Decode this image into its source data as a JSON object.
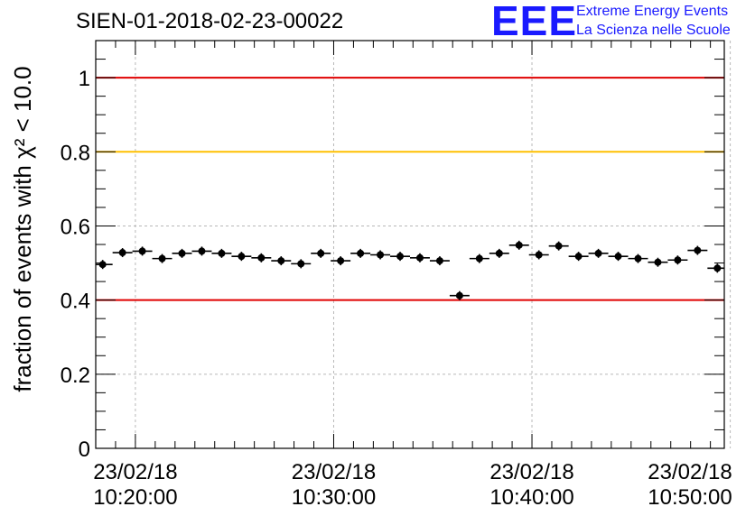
{
  "header": {
    "title": "SIEN-01-2018-02-23-00022",
    "logo_mark": "EEE",
    "logo_line1": "Extreme Energy Events",
    "logo_line2": "La Scienza nelle Scuole"
  },
  "chart_data": {
    "type": "scatter",
    "ylabel": "fraction of events with χ² < 10.0",
    "ylim": [
      0,
      1.1
    ],
    "xlim_minutes": [
      0,
      31.7
    ],
    "x_ticks": [
      {
        "minute": 2,
        "line1": "23/02/18",
        "line2": "10:20:00"
      },
      {
        "minute": 12,
        "line1": "23/02/18",
        "line2": "10:30:00"
      },
      {
        "minute": 22,
        "line1": "23/02/18",
        "line2": "10:40:00"
      },
      {
        "minute": 32,
        "line1": "23/02/18",
        "line2": "10:50:00"
      }
    ],
    "y_ticks": [
      {
        "value": 0,
        "label": "0"
      },
      {
        "value": 0.2,
        "label": "0.2"
      },
      {
        "value": 0.4,
        "label": "0.4"
      },
      {
        "value": 0.6,
        "label": "0.6"
      },
      {
        "value": 0.8,
        "label": "0.8"
      },
      {
        "value": 1.0,
        "label": "1"
      }
    ],
    "reference_lines": [
      {
        "value": 1.0,
        "color": "#e00000"
      },
      {
        "value": 0.8,
        "color": "#ffc000"
      },
      {
        "value": 0.4,
        "color": "#e00000"
      }
    ],
    "grid": true,
    "marker_color": "#000000",
    "bin_width_minutes": 1,
    "points": [
      {
        "x": 0.35,
        "y": 0.496
      },
      {
        "x": 1.35,
        "y": 0.528
      },
      {
        "x": 2.35,
        "y": 0.532
      },
      {
        "x": 3.35,
        "y": 0.512
      },
      {
        "x": 4.35,
        "y": 0.526
      },
      {
        "x": 5.35,
        "y": 0.532
      },
      {
        "x": 6.35,
        "y": 0.526
      },
      {
        "x": 7.35,
        "y": 0.518
      },
      {
        "x": 8.35,
        "y": 0.514
      },
      {
        "x": 9.35,
        "y": 0.506
      },
      {
        "x": 10.35,
        "y": 0.498
      },
      {
        "x": 11.35,
        "y": 0.526
      },
      {
        "x": 12.35,
        "y": 0.506
      },
      {
        "x": 13.35,
        "y": 0.526
      },
      {
        "x": 14.35,
        "y": 0.522
      },
      {
        "x": 15.35,
        "y": 0.518
      },
      {
        "x": 16.35,
        "y": 0.514
      },
      {
        "x": 17.35,
        "y": 0.506
      },
      {
        "x": 18.35,
        "y": 0.412
      },
      {
        "x": 19.35,
        "y": 0.512
      },
      {
        "x": 20.35,
        "y": 0.526
      },
      {
        "x": 21.35,
        "y": 0.548
      },
      {
        "x": 22.35,
        "y": 0.522
      },
      {
        "x": 23.35,
        "y": 0.546
      },
      {
        "x": 24.35,
        "y": 0.518
      },
      {
        "x": 25.35,
        "y": 0.526
      },
      {
        "x": 26.35,
        "y": 0.518
      },
      {
        "x": 27.35,
        "y": 0.512
      },
      {
        "x": 28.35,
        "y": 0.502
      },
      {
        "x": 29.35,
        "y": 0.508
      },
      {
        "x": 30.35,
        "y": 0.534
      },
      {
        "x": 31.35,
        "y": 0.486
      }
    ]
  }
}
